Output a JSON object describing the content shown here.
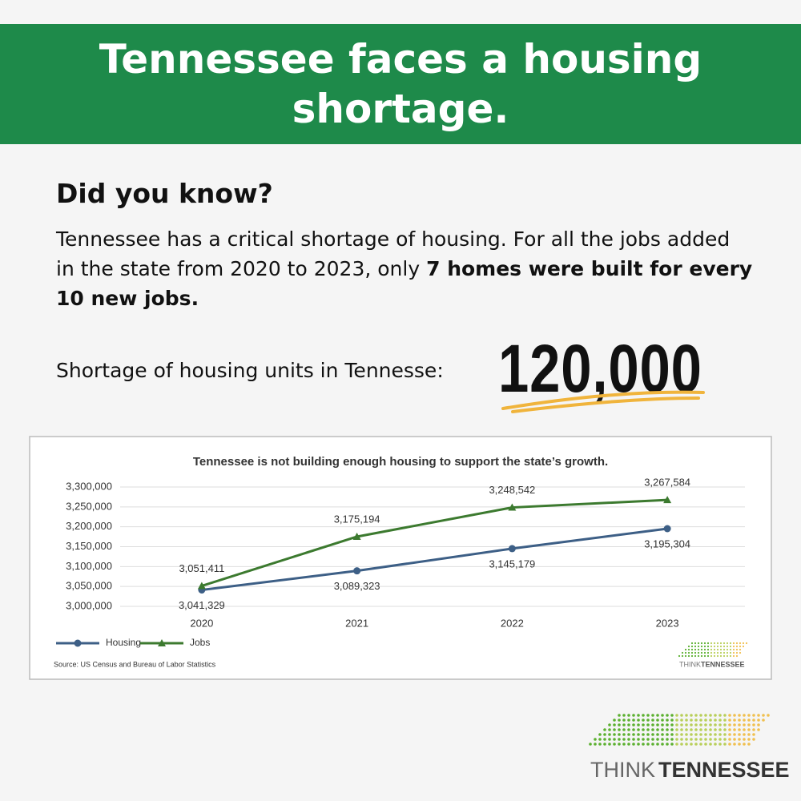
{
  "header": {
    "title": "Tennessee faces a housing shortage."
  },
  "intro": {
    "heading": "Did you know?",
    "text": "Tennessee has a critical shortage of housing. For all the jobs added in the state from 2020 to 2023, only",
    "emphasis": "7 homes were built for every 10 new jobs."
  },
  "highlight": {
    "label": "Shortage of housing units in Tennesse:",
    "figure": "120,000"
  },
  "chart_data": {
    "type": "line",
    "title": "Tennessee is not building enough housing to support the state’s growth.",
    "categories": [
      "2020",
      "2021",
      "2022",
      "2023"
    ],
    "series": [
      {
        "name": "Housing",
        "color": "#3d5f86",
        "marker": "circle",
        "values": [
          3041329,
          3089323,
          3145179,
          3195304
        ],
        "value_labels": [
          "3,041,329",
          "3,089,323",
          "3,145,179",
          "3,195,304"
        ]
      },
      {
        "name": "Jobs",
        "color": "#3c7a2f",
        "marker": "triangle",
        "values": [
          3051411,
          3175194,
          3248542,
          3267584
        ],
        "value_labels": [
          "3,051,411",
          "3,175,194",
          "3,248,542",
          "3,267,584"
        ]
      }
    ],
    "ylim": [
      3000000,
      3300000
    ],
    "yticks": [
      {
        "value": 3000000,
        "label": "3,000,000"
      },
      {
        "value": 3050000,
        "label": "3,050,000"
      },
      {
        "value": 3100000,
        "label": "3,100,000"
      },
      {
        "value": 3150000,
        "label": "3,150,000"
      },
      {
        "value": 3200000,
        "label": "3,200,000"
      },
      {
        "value": 3250000,
        "label": "3,250,000"
      },
      {
        "value": 3300000,
        "label": "3,300,000"
      }
    ],
    "grid": true,
    "legend": "bottom-left",
    "source": "Source: US Census and Bureau of Labor Statistics"
  },
  "logo": {
    "first": "THINK",
    "second": "TENNESSEE"
  }
}
